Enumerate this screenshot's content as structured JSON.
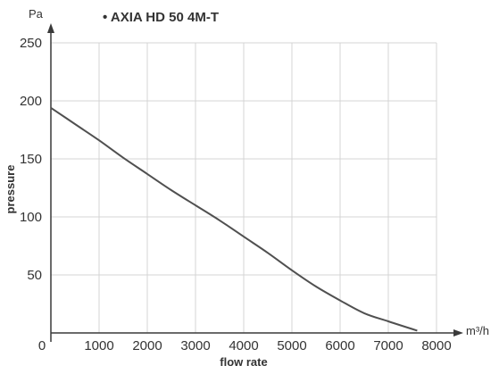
{
  "chart_data": {
    "type": "line",
    "title": "• AXIA HD 50 4M-T",
    "xlabel": "flow rate",
    "ylabel": "pressure",
    "x_unit": "m³/h",
    "y_unit": "Pa",
    "xlim": [
      0,
      8000
    ],
    "ylim": [
      0,
      250
    ],
    "x_ticks": [
      0,
      1000,
      2000,
      3000,
      4000,
      5000,
      6000,
      7000,
      8000
    ],
    "y_ticks": [
      50,
      100,
      150,
      200,
      250
    ],
    "x_tick_labels": [
      "0",
      "1000",
      "2000",
      "3000",
      "4000",
      "5000",
      "6000",
      "7000",
      "8000"
    ],
    "y_tick_labels": [
      "50",
      "100",
      "150",
      "200",
      "250"
    ],
    "grid": true,
    "series": [
      {
        "x": [
          0,
          500,
          1000,
          1500,
          2000,
          2500,
          3000,
          3500,
          4000,
          4500,
          5000,
          5500,
          6000,
          6500,
          7000,
          7600
        ],
        "values": [
          194,
          180,
          166,
          151,
          137,
          123,
          110,
          97,
          83,
          69,
          54,
          40,
          28,
          17,
          10,
          2
        ]
      }
    ],
    "colors": {
      "line": "#505050",
      "grid": "#d4d4d4",
      "axis": "#3a3a3a"
    }
  }
}
